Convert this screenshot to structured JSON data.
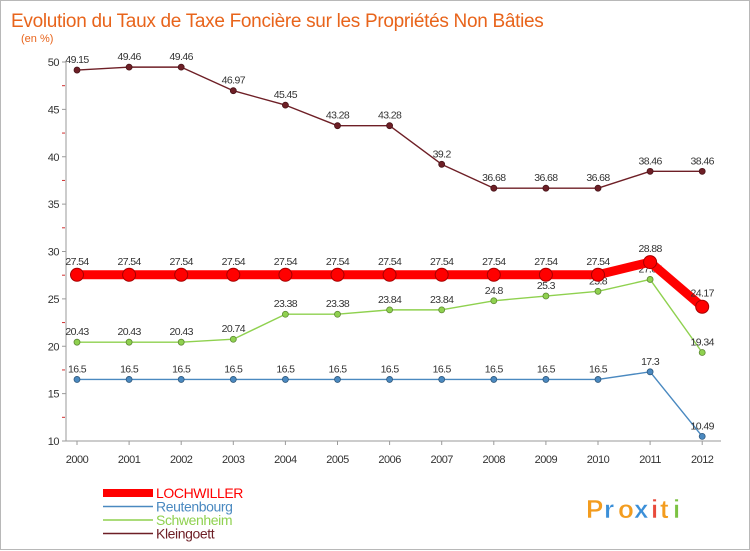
{
  "chart_data": {
    "type": "line",
    "title": "Evolution du Taux de Taxe Foncière sur les Propriétés Non Bâties",
    "unit_label": "(en %)",
    "xlabel": "",
    "ylabel": "",
    "ylim": [
      10,
      50
    ],
    "yticks": [
      10,
      15,
      20,
      25,
      30,
      35,
      40,
      45,
      50
    ],
    "categories": [
      "2000",
      "2001",
      "2002",
      "2003",
      "2004",
      "2005",
      "2006",
      "2007",
      "2008",
      "2009",
      "2010",
      "2011",
      "2012"
    ],
    "series": [
      {
        "name": "Kleingoett",
        "color": "#6e1f26",
        "labels_below": false,
        "values": [
          49.15,
          49.46,
          49.46,
          46.97,
          45.45,
          43.28,
          43.28,
          39.2,
          36.68,
          36.68,
          36.68,
          38.46,
          38.46
        ]
      },
      {
        "name": "Schwenheim",
        "color": "#8fd14f",
        "labels_below": false,
        "values": [
          20.43,
          20.43,
          20.43,
          20.74,
          23.38,
          23.38,
          23.84,
          23.84,
          24.8,
          25.3,
          25.8,
          27.05,
          19.34
        ]
      },
      {
        "name": "Reutenbourg",
        "color": "#4a89c0",
        "labels_below": false,
        "values": [
          16.5,
          16.5,
          16.5,
          16.5,
          16.5,
          16.5,
          16.5,
          16.5,
          16.5,
          16.5,
          16.5,
          17.3,
          10.49
        ]
      },
      {
        "name": "LOCHWILLER",
        "color": "#ff0000",
        "labels_below": false,
        "thick": true,
        "values": [
          27.54,
          27.54,
          27.54,
          27.54,
          27.54,
          27.54,
          27.54,
          27.54,
          27.54,
          27.54,
          27.54,
          28.88,
          24.17
        ]
      }
    ],
    "legend_order": [
      "LOCHWILLER",
      "Reutenbourg",
      "Schwenheim",
      "Kleingoett"
    ],
    "legend_position": "bottom-left",
    "grid": false
  },
  "logo": {
    "text": "Proxiti",
    "letters": [
      "P",
      "r",
      "o",
      "x",
      "i",
      "t",
      "i"
    ],
    "colors": [
      "#f39c1e",
      "#3b8fd8",
      "#f39c1e",
      "#3b8fd8",
      "#e84a3b",
      "#f39c1e",
      "#7cc242"
    ]
  }
}
